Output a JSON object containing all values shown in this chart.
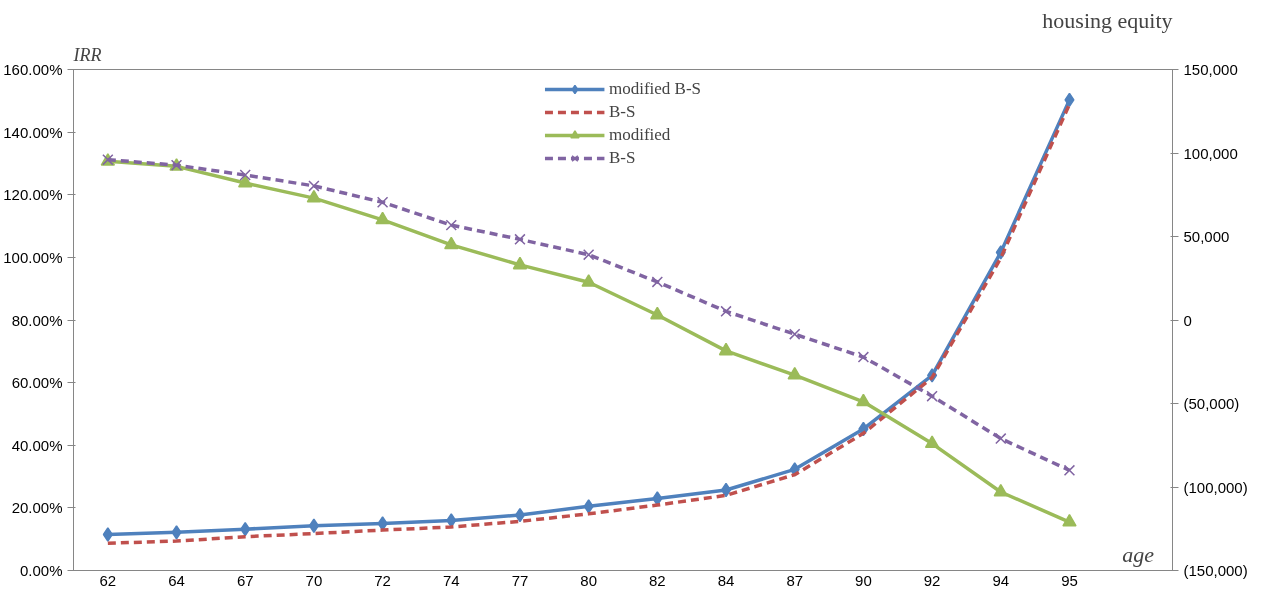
{
  "chart_data": {
    "type": "line",
    "xlabel": "age",
    "ylabel": "IRR",
    "y2label": "housing equity",
    "categories": [
      "62",
      "64",
      "67",
      "70",
      "72",
      "74",
      "77",
      "80",
      "82",
      "84",
      "87",
      "90",
      "92",
      "94",
      "95"
    ],
    "series": [
      {
        "name": "modified B-S",
        "color": "#4f81bd",
        "marker": "diamond",
        "line_style": "solid",
        "values": [
          11.5,
          12.2,
          13.2,
          14.3,
          15,
          16,
          17.7,
          20.5,
          23,
          25.7,
          32.3,
          45.2,
          62.3,
          101.6,
          150.3
        ]
      },
      {
        "name": "B-S",
        "color": "#c0504d",
        "marker": "none",
        "line_style": "dashed",
        "values": [
          8.7,
          9.4,
          10.8,
          11.8,
          12.9,
          13.9,
          15.7,
          18.1,
          20.9,
          24,
          30.6,
          43.8,
          61.6,
          99.8,
          148.9
        ]
      },
      {
        "name": "modified",
        "color": "#9bbb59",
        "marker": "triangle",
        "line_style": "solid",
        "axis": "y2",
        "values": [
          95000,
          92000,
          82000,
          73000,
          60000,
          45000,
          33000,
          22600,
          3000,
          -18500,
          -33000,
          -49000,
          -74000,
          -103000,
          -121000
        ]
      },
      {
        "name": "B-S",
        "color": "#8064a2",
        "marker": "cross",
        "line_style": "dashed",
        "axis": "y2",
        "values": [
          96000,
          92700,
          86800,
          80300,
          70500,
          56800,
          48300,
          39100,
          22800,
          5200,
          -8500,
          -22200,
          -45600,
          -71000,
          -90000
        ]
      }
    ],
    "ylim": [
      0,
      160
    ],
    "yticks": [
      {
        "value": 0,
        "label": "0.00%"
      },
      {
        "value": 20,
        "label": "20.00%"
      },
      {
        "value": 40,
        "label": "40.00%"
      },
      {
        "value": 60,
        "label": "60.00%"
      },
      {
        "value": 80,
        "label": "80.00%"
      },
      {
        "value": 100,
        "label": "100.00%"
      },
      {
        "value": 120,
        "label": "120.00%"
      },
      {
        "value": 140,
        "label": "140.00%"
      },
      {
        "value": 160,
        "label": "160.00%"
      }
    ],
    "y2lim": [
      -150000,
      150000
    ],
    "y2ticks": [
      {
        "value": -150000,
        "label": "(150,000)"
      },
      {
        "value": -100000,
        "label": "(100,000)"
      },
      {
        "value": -50000,
        "label": "(50,000)"
      },
      {
        "value": 0,
        "label": "0"
      },
      {
        "value": 50000,
        "label": "50,000"
      },
      {
        "value": 100000,
        "label": "100,000"
      },
      {
        "value": 150000,
        "label": "150,000"
      }
    ],
    "grid": false,
    "legend": "top"
  }
}
